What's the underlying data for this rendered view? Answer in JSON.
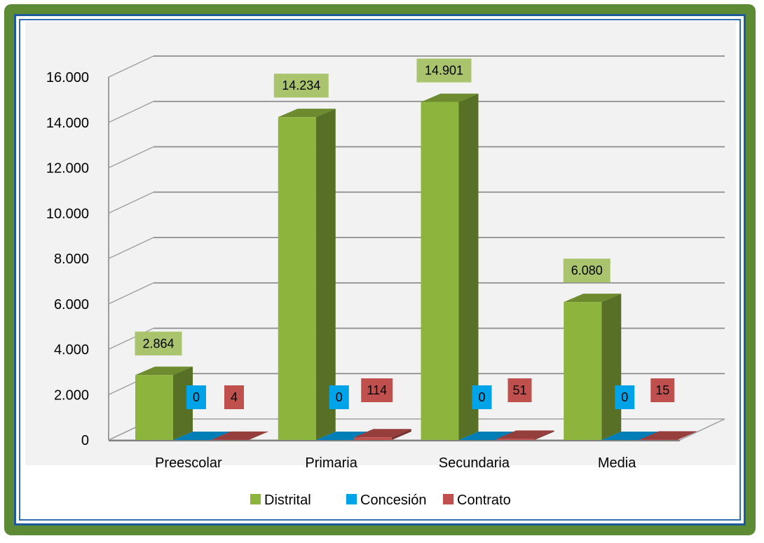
{
  "chart_data": {
    "type": "bar",
    "title": "",
    "xlabel": "",
    "ylabel": "",
    "categories": [
      "Preescolar",
      "Primaria",
      "Secundaria",
      "Media"
    ],
    "series": [
      {
        "name": "Distrital",
        "values": [
          2864,
          14234,
          14901,
          6080
        ],
        "labels": [
          "2.864",
          "14.234",
          "14.901",
          "6.080"
        ],
        "color": "#8db43c",
        "label_bg": "#a9c46c"
      },
      {
        "name": "Concesión",
        "values": [
          0,
          0,
          0,
          0
        ],
        "labels": [
          "0",
          "0",
          "0",
          "0"
        ],
        "color": "#00a2e8",
        "label_bg": "#00a2e8"
      },
      {
        "name": "Contrato",
        "values": [
          4,
          114,
          51,
          15
        ],
        "labels": [
          "4",
          "114",
          "51",
          "15"
        ],
        "color": "#c0504d",
        "label_bg": "#c0504d"
      }
    ],
    "ylim": [
      0,
      16000
    ],
    "yticks": [
      0,
      2000,
      4000,
      6000,
      8000,
      10000,
      12000,
      14000,
      16000
    ],
    "ytick_labels": [
      "0",
      "2.000",
      "4.000",
      "6.000",
      "8.000",
      "10.000",
      "12.000",
      "14.000",
      "16.000"
    ],
    "grid": true,
    "legend_position": "bottom",
    "style": "3d-clustered-column"
  }
}
